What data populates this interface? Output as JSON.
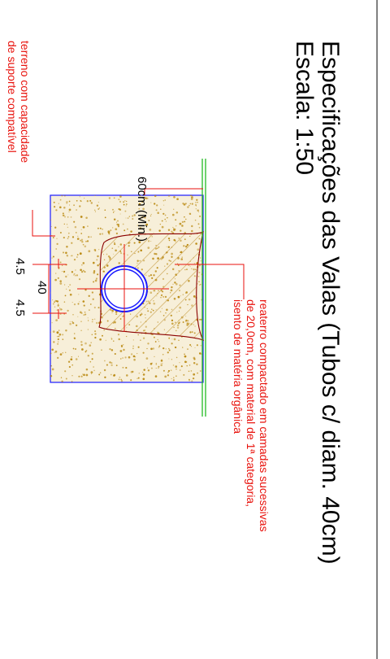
{
  "drawing": {
    "title_line1": "Especificações das Valas (Tubos c/ diam. 40cm)",
    "title_line2": "Escala: 1:50",
    "width_label": "60cm (Mín.)",
    "dim_left": "4.5",
    "dim_center": "40",
    "dim_right": "4.5",
    "soil_note": [
      "terreno com capacidade",
      "de suporte compatível"
    ],
    "backfill_note": [
      "reaterro compactado em camadas sucessivas",
      "de 20,0cm, com material de 1ª categoria,",
      "isento de matéria orgânica"
    ]
  },
  "colors": {
    "frame": "#000000",
    "trench_outline": "#1a1aff",
    "soil_speckle": "#b8860b",
    "soil_fill": "#f7efd9",
    "ground_line": "#22bb22",
    "pipe": "#1a1aff",
    "annotation": "#e8120c",
    "backfill_hatch": "#c8a04a",
    "backfill_outline": "#8b0000"
  }
}
